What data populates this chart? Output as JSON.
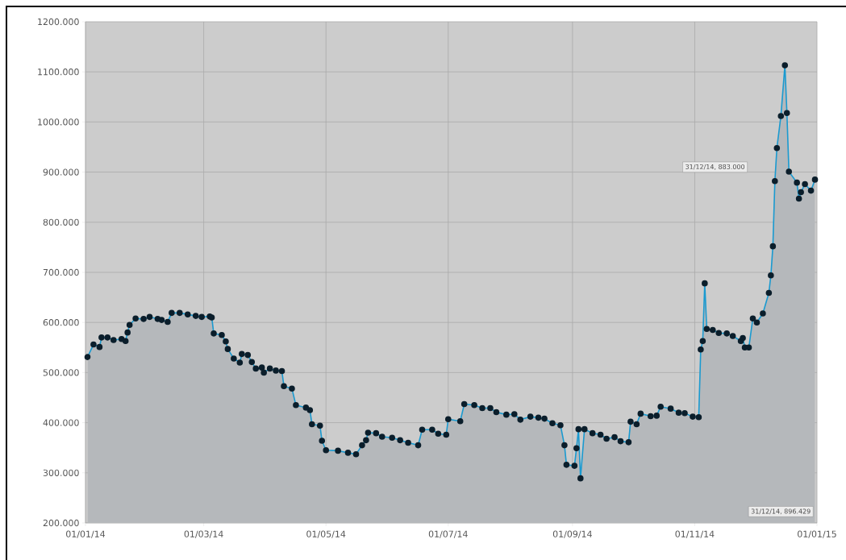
{
  "chart_data": {
    "type": "area",
    "marker": "circle",
    "grid": true,
    "xlim": [
      "2014-01-01",
      "2015-01-01"
    ],
    "xticks": [
      {
        "value": "2014-01-01",
        "label": "01/01/14"
      },
      {
        "value": "2014-03-01",
        "label": "01/03/14"
      },
      {
        "value": "2014-05-01",
        "label": "01/05/14"
      },
      {
        "value": "2014-07-01",
        "label": "01/07/14"
      },
      {
        "value": "2014-09-01",
        "label": "01/09/14"
      },
      {
        "value": "2014-11-01",
        "label": "01/11/14"
      },
      {
        "value": "2015-01-01",
        "label": "01/01/15"
      }
    ],
    "ylim": [
      200,
      1200
    ],
    "yticks": [
      {
        "value": 200,
        "label": "200.000"
      },
      {
        "value": 300,
        "label": "300.000"
      },
      {
        "value": 400,
        "label": "400.000"
      },
      {
        "value": 500,
        "label": "500.000"
      },
      {
        "value": 600,
        "label": "600.000"
      },
      {
        "value": 700,
        "label": "700.000"
      },
      {
        "value": 800,
        "label": "800.000"
      },
      {
        "value": 900,
        "label": "900.000"
      },
      {
        "value": 1000,
        "label": "1000.000"
      },
      {
        "value": 1100,
        "label": "1100.000"
      },
      {
        "value": 1200,
        "label": "1200.000"
      }
    ],
    "x": [
      "2014-01-02",
      "2014-01-05",
      "2014-01-08",
      "2014-01-09",
      "2014-01-12",
      "2014-01-15",
      "2014-01-19",
      "2014-01-21",
      "2014-01-22",
      "2014-01-23",
      "2014-01-26",
      "2014-01-30",
      "2014-02-02",
      "2014-02-06",
      "2014-02-08",
      "2014-02-11",
      "2014-02-13",
      "2014-02-17",
      "2014-02-21",
      "2014-02-25",
      "2014-02-28",
      "2014-03-04",
      "2014-03-05",
      "2014-03-06",
      "2014-03-10",
      "2014-03-12",
      "2014-03-13",
      "2014-03-16",
      "2014-03-19",
      "2014-03-20",
      "2014-03-23",
      "2014-03-25",
      "2014-03-27",
      "2014-03-30",
      "2014-03-31",
      "2014-04-03",
      "2014-04-06",
      "2014-04-09",
      "2014-04-10",
      "2014-04-14",
      "2014-04-16",
      "2014-04-21",
      "2014-04-23",
      "2014-04-24",
      "2014-04-28",
      "2014-04-29",
      "2014-05-01",
      "2014-05-07",
      "2014-05-12",
      "2014-05-16",
      "2014-05-19",
      "2014-05-21",
      "2014-05-22",
      "2014-05-26",
      "2014-05-29",
      "2014-06-03",
      "2014-06-07",
      "2014-06-11",
      "2014-06-16",
      "2014-06-18",
      "2014-06-23",
      "2014-06-26",
      "2014-06-30",
      "2014-07-01",
      "2014-07-07",
      "2014-07-09",
      "2014-07-14",
      "2014-07-18",
      "2014-07-22",
      "2014-07-25",
      "2014-07-30",
      "2014-08-03",
      "2014-08-06",
      "2014-08-11",
      "2014-08-15",
      "2014-08-18",
      "2014-08-22",
      "2014-08-26",
      "2014-08-28",
      "2014-08-29",
      "2014-09-02",
      "2014-09-03",
      "2014-09-04",
      "2014-09-05",
      "2014-09-07",
      "2014-09-11",
      "2014-09-15",
      "2014-09-18",
      "2014-09-22",
      "2014-09-25",
      "2014-09-29",
      "2014-09-30",
      "2014-10-03",
      "2014-10-05",
      "2014-10-10",
      "2014-10-13",
      "2014-10-15",
      "2014-10-20",
      "2014-10-24",
      "2014-10-27",
      "2014-10-31",
      "2014-11-03",
      "2014-11-04",
      "2014-11-05",
      "2014-11-06",
      "2014-11-07",
      "2014-11-10",
      "2014-11-13",
      "2014-11-17",
      "2014-11-20",
      "2014-11-24",
      "2014-11-25",
      "2014-11-26",
      "2014-11-28",
      "2014-11-30",
      "2014-12-02",
      "2014-12-05",
      "2014-12-08",
      "2014-12-09",
      "2014-12-10",
      "2014-12-11",
      "2014-12-12",
      "2014-12-14",
      "2014-12-16",
      "2014-12-17",
      "2014-12-18",
      "2014-12-22",
      "2014-12-23",
      "2014-12-24",
      "2014-12-26",
      "2014-12-29",
      "2014-12-31"
    ],
    "series": [
      {
        "color": "#1a9ad0",
        "values": [
          531,
          556,
          551,
          570,
          570,
          565,
          567,
          563,
          580,
          595,
          608,
          607,
          611,
          607,
          605,
          601,
          619,
          619,
          616,
          613,
          611,
          612,
          610,
          578,
          575,
          562,
          547,
          528,
          520,
          537,
          535,
          521,
          508,
          510,
          500,
          508,
          504,
          503,
          473,
          468,
          435,
          430,
          425,
          397,
          394,
          364,
          345,
          344,
          340,
          337,
          355,
          365,
          380,
          379,
          372,
          370,
          365,
          360,
          355,
          386,
          386,
          378,
          376,
          407,
          403,
          437,
          435,
          429,
          429,
          421,
          416,
          417,
          406,
          412,
          410,
          408,
          399,
          395,
          355,
          316,
          314,
          349,
          387,
          289,
          387,
          379,
          376,
          368,
          371,
          363,
          361,
          402,
          397,
          418,
          413,
          414,
          432,
          428,
          420,
          419,
          412,
          411,
          546,
          563,
          678,
          587,
          585,
          579,
          578,
          573,
          563,
          569,
          550,
          550,
          608,
          600,
          618,
          659,
          694,
          752,
          882,
          948,
          1012,
          1113,
          1018,
          901,
          879,
          847,
          860,
          876,
          863,
          885
        ]
      }
    ],
    "annotations": [
      "31/12/14, 883.000",
      "31/12/14, 896.429"
    ]
  }
}
